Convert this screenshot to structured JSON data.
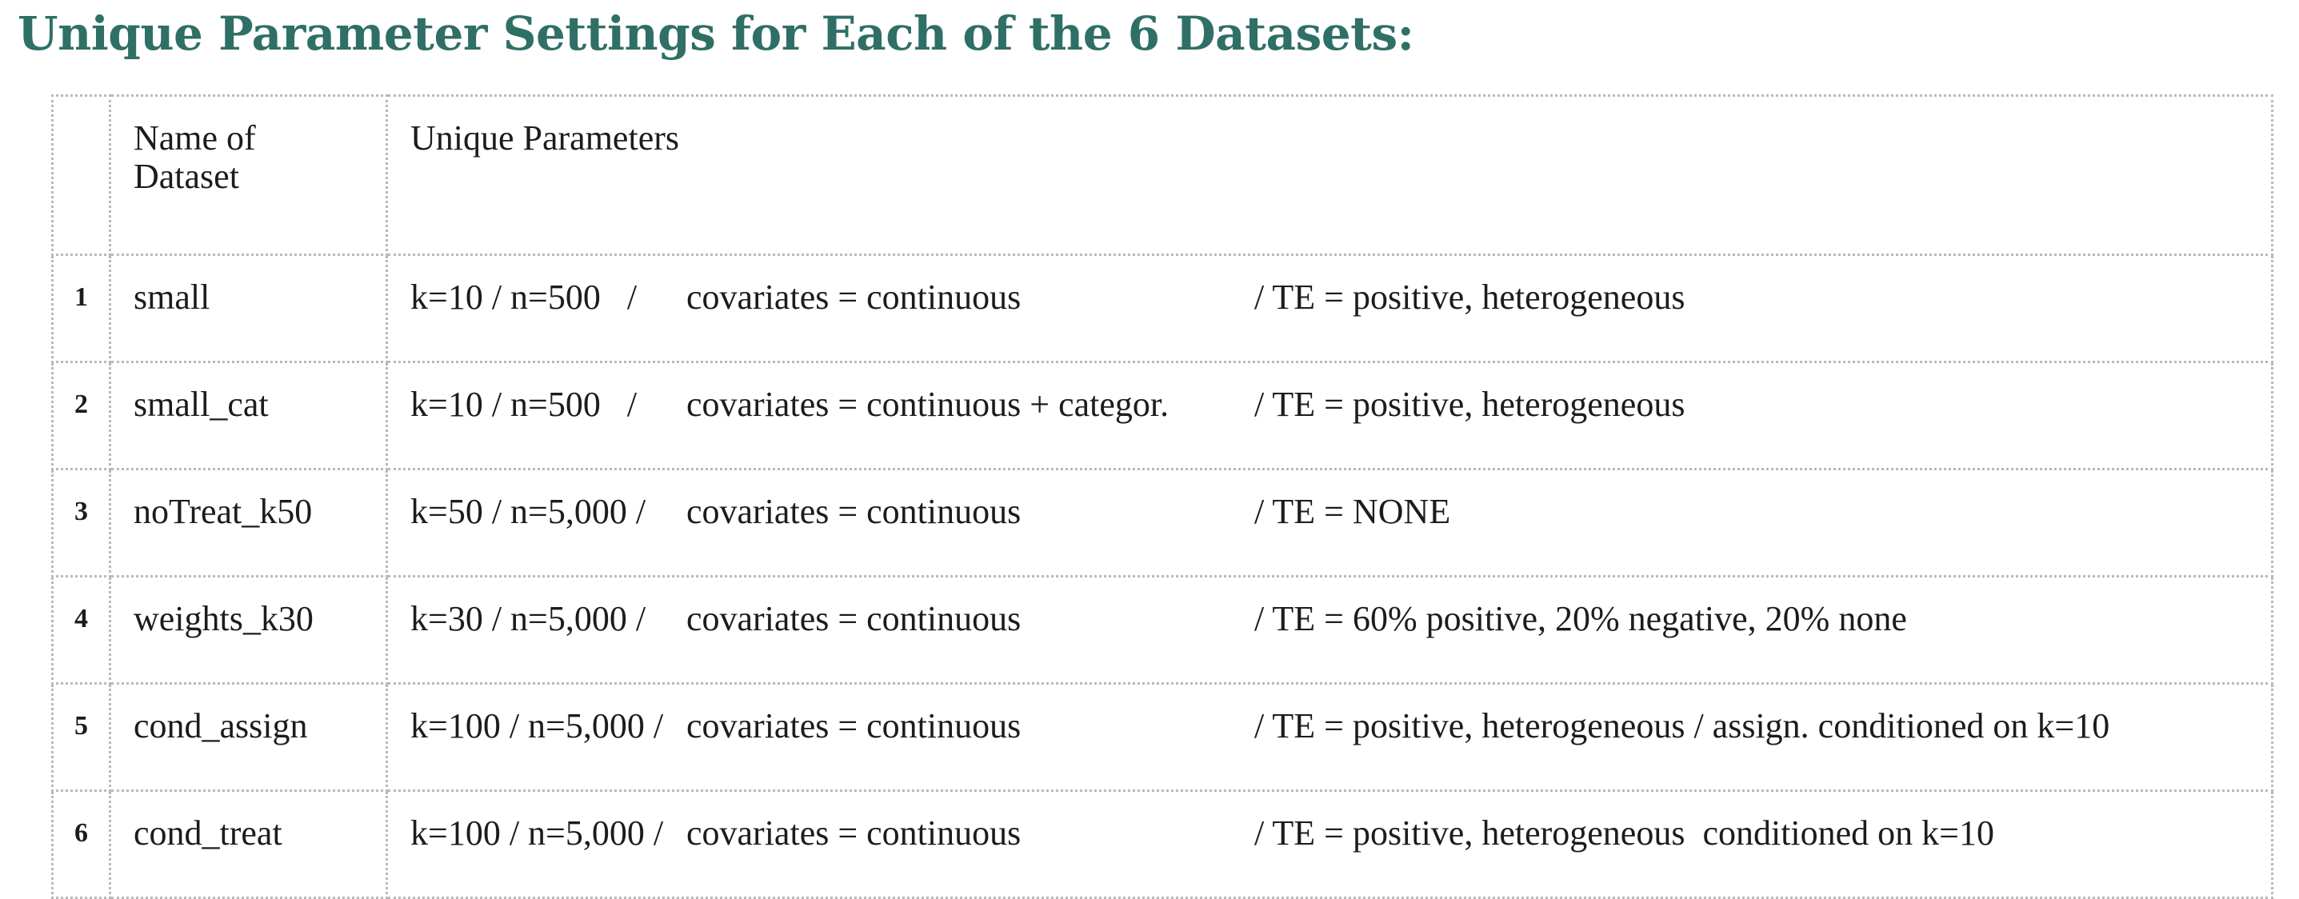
{
  "title": "Unique Parameter Settings for Each of the 6 Datasets:",
  "table": {
    "headers": {
      "number": "",
      "name": "Name of Dataset",
      "params": "Unique Parameters"
    },
    "rows": [
      {
        "number": "1",
        "name": "small",
        "params": {
          "k_n": "k=10 / n=500   /",
          "covariates": "covariates = continuous",
          "te": "/ TE = positive, heterogeneous"
        }
      },
      {
        "number": "2",
        "name": "small_cat",
        "params": {
          "k_n": "k=10 / n=500   /",
          "covariates": "covariates = continuous + categor.",
          "te": "/ TE = positive, heterogeneous"
        }
      },
      {
        "number": "3",
        "name": "noTreat_k50",
        "params": {
          "k_n": "k=50 / n=5,000 /",
          "covariates": "covariates = continuous",
          "te": "/ TE = NONE"
        }
      },
      {
        "number": "4",
        "name": "weights_k30",
        "params": {
          "k_n": "k=30 / n=5,000 /",
          "covariates": "covariates = continuous",
          "te": "/ TE = 60% positive, 20% negative, 20% none"
        }
      },
      {
        "number": "5",
        "name": "cond_assign",
        "params": {
          "k_n": "k=100 / n=5,000 /",
          "covariates": "covariates = continuous",
          "te": "/ TE = positive, heterogeneous / assign. conditioned on k=10"
        }
      },
      {
        "number": "6",
        "name": "cond_treat",
        "params": {
          "k_n": "k=100 / n=5,000 /",
          "covariates": "covariates = continuous",
          "te": "/ TE = positive, heterogeneous  conditioned on k=10"
        }
      }
    ]
  }
}
